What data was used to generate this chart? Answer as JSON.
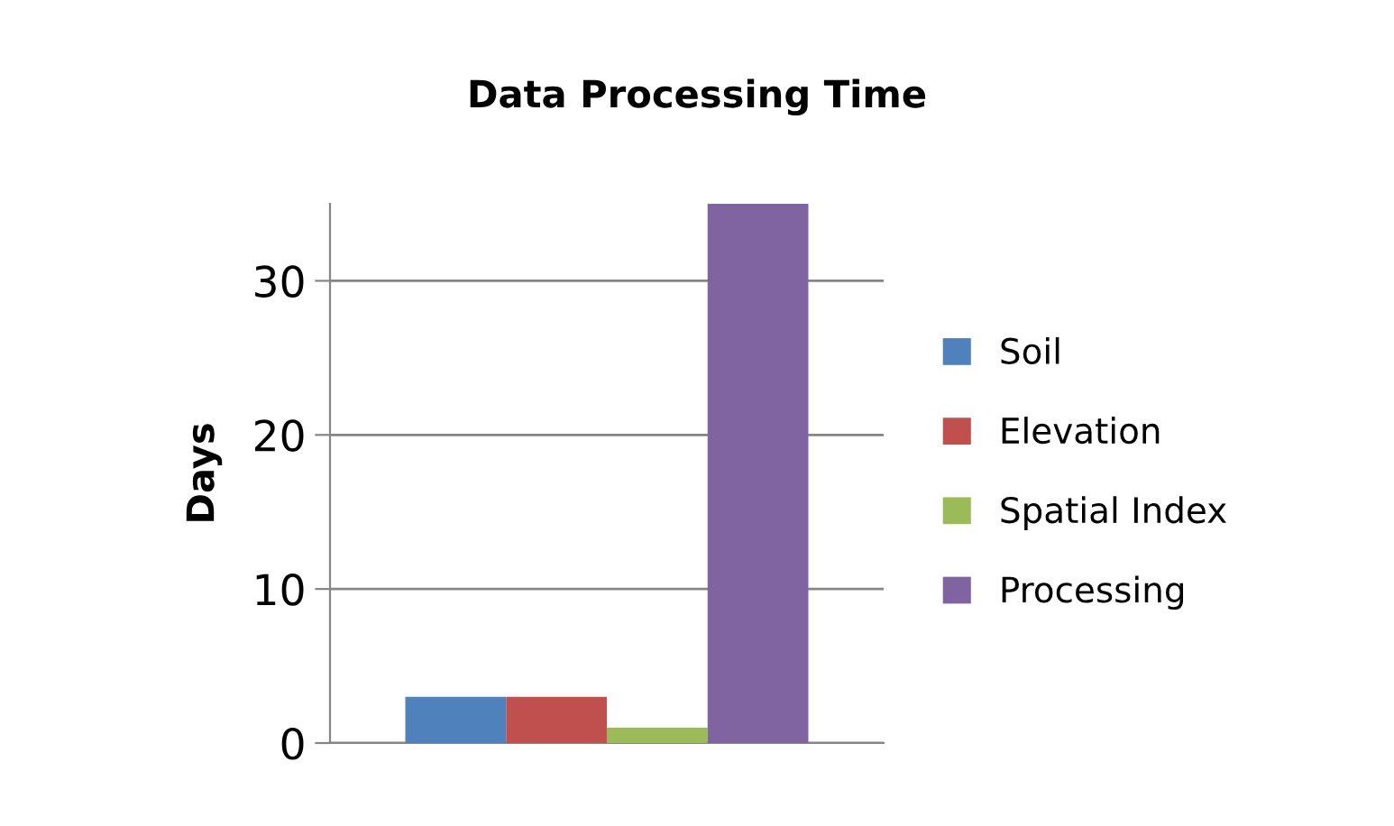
{
  "chart_data": {
    "type": "bar",
    "title": "Data Processing Time",
    "ylabel": "Days",
    "categories": [
      null
    ],
    "series": [
      {
        "name": "Soil",
        "color": "#4f81bd",
        "values": [
          3
        ]
      },
      {
        "name": "Elevation",
        "color": "#c0504d",
        "values": [
          3
        ]
      },
      {
        "name": "Spatial Index",
        "color": "#9bbb59",
        "values": [
          1
        ]
      },
      {
        "name": "Processing",
        "color": "#8064a2",
        "values": [
          35
        ]
      }
    ],
    "ylim": [
      0,
      35
    ],
    "yticks": [
      0,
      10,
      20,
      30
    ],
    "grid": "y",
    "legend": "right"
  }
}
